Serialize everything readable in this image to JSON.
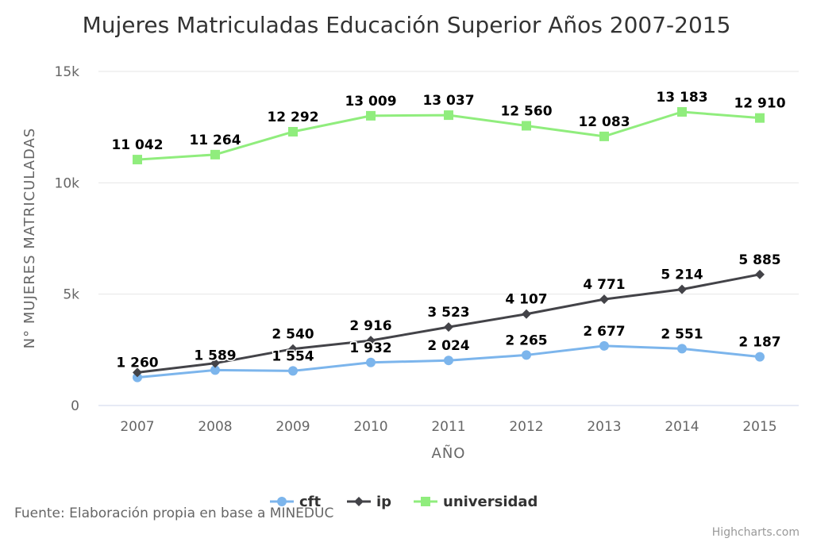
{
  "chart_data": {
    "type": "line",
    "title": "Mujeres Matriculadas Educación Superior Años 2007-2015",
    "xlabel": "AÑO",
    "ylabel": "N° MUJERES MATRICULADAS",
    "categories": [
      "2007",
      "2008",
      "2009",
      "2010",
      "2011",
      "2012",
      "2013",
      "2014",
      "2015"
    ],
    "ylim": [
      0,
      15000
    ],
    "yticks": [
      0,
      5000,
      10000,
      15000
    ],
    "ytick_labels": [
      "0",
      "5k",
      "10k",
      "15k"
    ],
    "grid": true,
    "legend_position": "bottom",
    "series": [
      {
        "name": "cft",
        "color": "#7cb5ec",
        "marker": "circle",
        "values": [
          1260,
          1589,
          1554,
          1932,
          2024,
          2265,
          2677,
          2551,
          2187
        ],
        "labels": [
          "1 260",
          "1 589",
          "1 554",
          "1 932",
          "2 024",
          "2 265",
          "2 677",
          "2 551",
          "2 187"
        ]
      },
      {
        "name": "ip",
        "color": "#434348",
        "marker": "diamond",
        "values": [
          1483,
          1900,
          2540,
          2916,
          3523,
          4107,
          4771,
          5214,
          5885
        ],
        "labels": [
          null,
          null,
          "2 540",
          "2 916",
          "3 523",
          "4 107",
          "4 771",
          "5 214",
          "5 885"
        ]
      },
      {
        "name": "universidad",
        "color": "#90ed7d",
        "marker": "square",
        "values": [
          11042,
          11264,
          12292,
          13009,
          13037,
          12560,
          12083,
          13183,
          12910
        ],
        "labels": [
          "11 042",
          "11 264",
          "12 292",
          "13 009",
          "13 037",
          "12 560",
          "12 083",
          "13 183",
          "12 910"
        ]
      }
    ]
  },
  "caption": {
    "source": "Fuente: Elaboración propia en base a MINEDUC",
    "credits": "Highcharts.com"
  }
}
